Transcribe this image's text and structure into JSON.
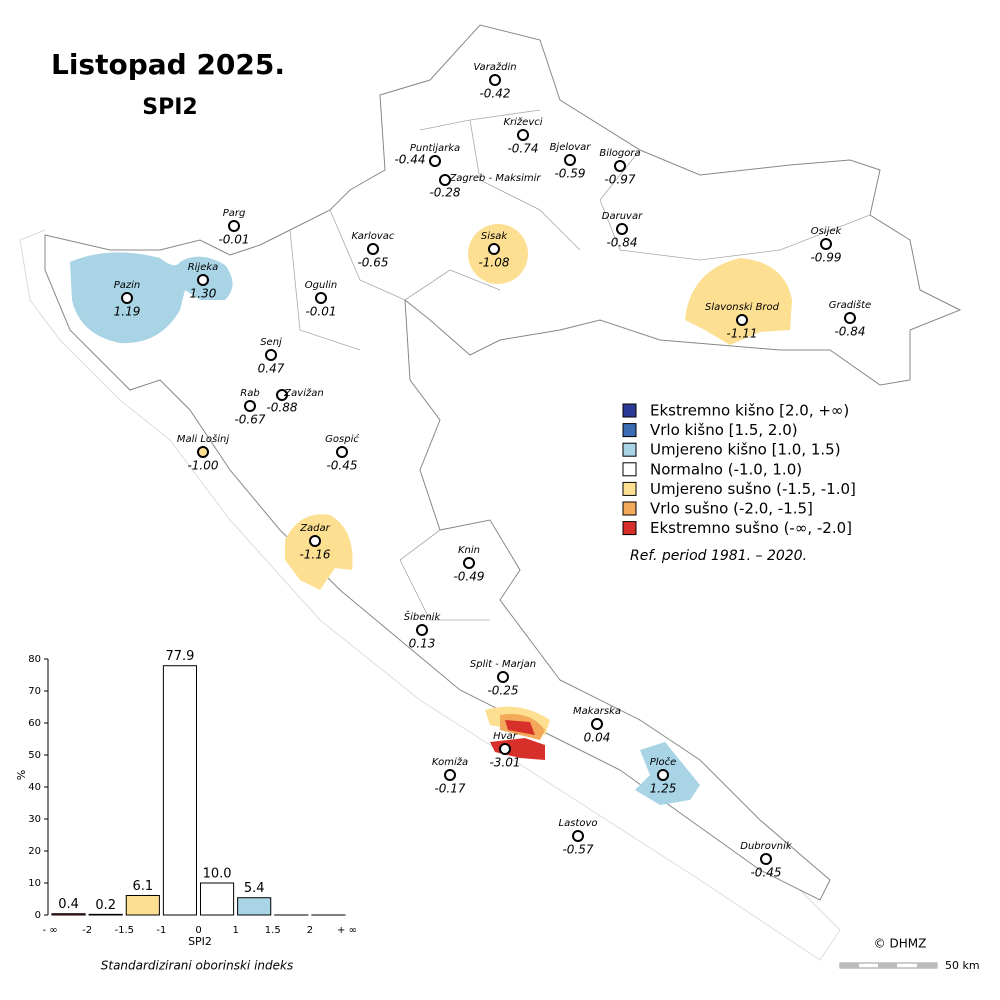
{
  "title": "Listopad 2025.",
  "subtitle": "SPI2",
  "stations": [
    {
      "name": "Varaždin",
      "value": "-0.42"
    },
    {
      "name": "Križevci",
      "value": "-0.74"
    },
    {
      "name": "Puntijarka",
      "value": "-0.44"
    },
    {
      "name": "Zagreb - Maksimir",
      "value": "-0.28"
    },
    {
      "name": "Bjelovar",
      "value": "-0.59"
    },
    {
      "name": "Bilogora",
      "value": "-0.97"
    },
    {
      "name": "Daruvar",
      "value": "-0.84"
    },
    {
      "name": "Osijek",
      "value": "-0.99"
    },
    {
      "name": "Parg",
      "value": "-0.01"
    },
    {
      "name": "Karlovac",
      "value": "-0.65"
    },
    {
      "name": "Sisak",
      "value": "-1.08"
    },
    {
      "name": "Rijeka",
      "value": "1.30"
    },
    {
      "name": "Pazin",
      "value": "1.19"
    },
    {
      "name": "Ogulin",
      "value": "-0.01"
    },
    {
      "name": "Slavonski Brod",
      "value": "-1.11"
    },
    {
      "name": "Gradište",
      "value": "-0.84"
    },
    {
      "name": "Senj",
      "value": "0.47"
    },
    {
      "name": "Zavižan",
      "value": "-0.88"
    },
    {
      "name": "Rab",
      "value": "-0.67"
    },
    {
      "name": "Mali Lošinj",
      "value": "-1.00",
      "color": "#fddf92"
    },
    {
      "name": "Gospić",
      "value": "-0.45"
    },
    {
      "name": "Zadar",
      "value": "-1.16"
    },
    {
      "name": "Knin",
      "value": "-0.49"
    },
    {
      "name": "Šibenik",
      "value": "0.13"
    },
    {
      "name": "Split - Marjan",
      "value": "-0.25"
    },
    {
      "name": "Makarska",
      "value": "0.04"
    },
    {
      "name": "Hvar",
      "value": "-3.01"
    },
    {
      "name": "Komiža",
      "value": "-0.17"
    },
    {
      "name": "Ploče",
      "value": "1.25"
    },
    {
      "name": "Lastovo",
      "value": "-0.57"
    },
    {
      "name": "Dubrovnik",
      "value": "-0.45"
    }
  ],
  "legend": {
    "items": [
      {
        "label": "Ekstremno kišno [2.0, +∞)",
        "color": "#2b3a96"
      },
      {
        "label": "Vrlo kišno [1.5, 2.0)",
        "color": "#3b6db5"
      },
      {
        "label": "Umjereno kišno [1.0, 1.5)",
        "color": "#a9d4e6"
      },
      {
        "label": "Normalno (-1.0, 1.0)",
        "color": "#ffffff"
      },
      {
        "label": "Umjereno sušno (-1.5, -1.0]",
        "color": "#fddf92"
      },
      {
        "label": "Vrlo sušno (-2.0, -1.5]",
        "color": "#f4a95a"
      },
      {
        "label": "Ekstremno sušno (-∞, -2.0]",
        "color": "#d7302a"
      }
    ],
    "note": "Ref. period 1981. – 2020."
  },
  "chart_data": {
    "type": "histogram",
    "bins": [
      "- ∞",
      "-2",
      "-1.5",
      "-1",
      "0",
      "1",
      "1.5",
      "2",
      "+ ∞"
    ],
    "values": [
      0.4,
      0.2,
      6.1,
      77.9,
      10.0,
      5.4,
      0,
      0
    ],
    "value_labels": [
      "0.4",
      "0.2",
      "6.1",
      "77.9",
      "10.0",
      "5.4",
      null,
      null
    ],
    "colors": [
      "#d7302a",
      "#f4a95a",
      "#fddf92",
      "#ffffff",
      "#ffffff",
      "#a9d4e6",
      "#3b6db5",
      "#2b3a96"
    ],
    "ylim": [
      0,
      80
    ],
    "yticks": [
      0,
      10,
      20,
      30,
      40,
      50,
      60,
      70,
      80
    ],
    "ylabel": "%",
    "xlabel": "SPI2",
    "caption": "Standardizirani oborinski indeks"
  },
  "credit": "© DHMZ",
  "scale_label": "50 km"
}
